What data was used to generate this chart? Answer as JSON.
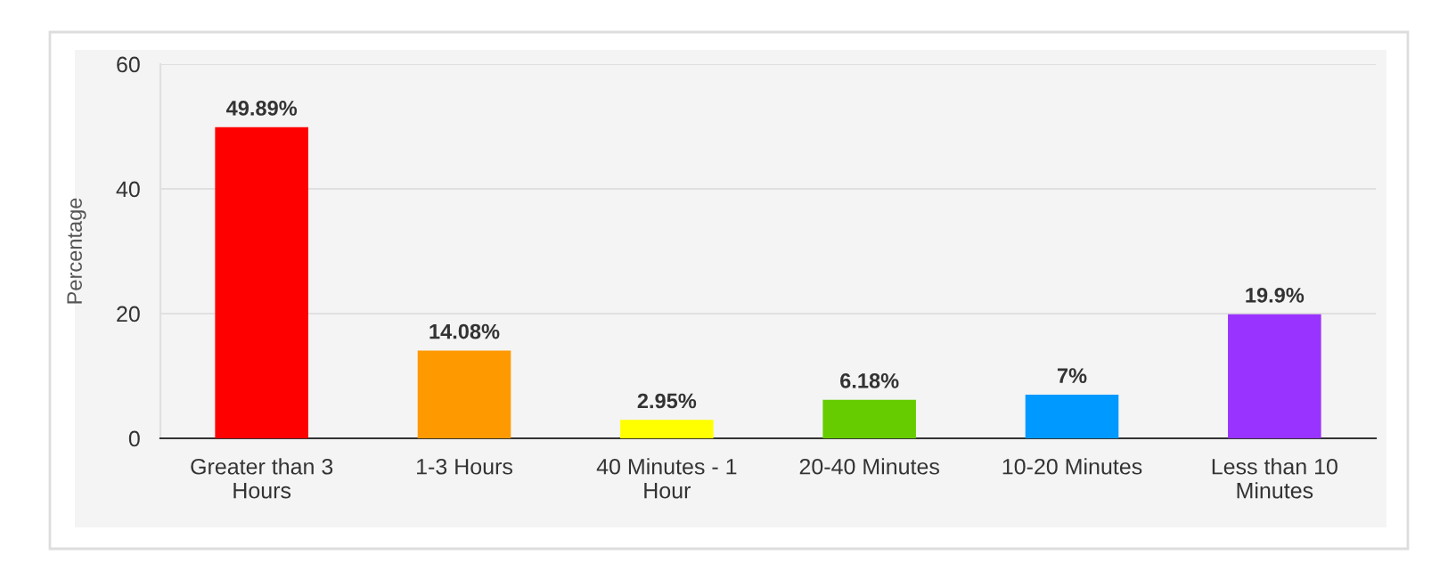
{
  "chart_data": {
    "type": "bar",
    "ylabel": "Percentage",
    "categories": [
      "Greater than 3\nHours",
      "1-3 Hours",
      "40 Minutes - 1\nHour",
      "20-40 Minutes",
      "10-20 Minutes",
      "Less than 10\nMinutes"
    ],
    "values": [
      49.89,
      14.08,
      2.95,
      6.18,
      7,
      19.9
    ],
    "colors": [
      "#ff0000",
      "#ff9900",
      "#ffff00",
      "#66cc00",
      "#0099ff",
      "#9933ff"
    ],
    "value_labels": [
      "49.89%",
      "14.08%",
      "2.95%",
      "6.18%",
      "7%",
      "19.9%"
    ],
    "ylim": [
      0,
      60
    ],
    "yticks": [
      0,
      20,
      40,
      60
    ],
    "grid": "y"
  }
}
